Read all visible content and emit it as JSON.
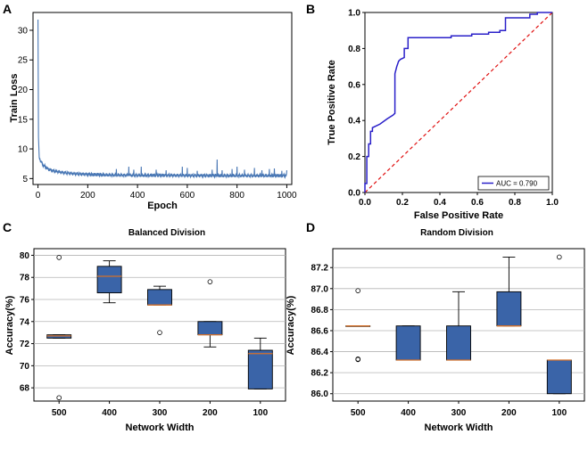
{
  "panels": [
    "A",
    "B",
    "C",
    "D"
  ],
  "chart_data": [
    {
      "id": "A",
      "type": "line",
      "title": "",
      "xlabel": "Epoch",
      "ylabel": "Train Loss",
      "xlim": [
        -20,
        1020
      ],
      "ylim": [
        4,
        33
      ],
      "xticks": [
        0,
        200,
        400,
        600,
        800,
        1000
      ],
      "yticks": [
        5,
        10,
        15,
        20,
        25,
        30
      ],
      "color": "#4a78b5",
      "base_points": [
        [
          0,
          31.8
        ],
        [
          2,
          12
        ],
        [
          5,
          8.5
        ],
        [
          10,
          8.0
        ],
        [
          20,
          7.3
        ],
        [
          40,
          6.6
        ],
        [
          60,
          6.3
        ],
        [
          100,
          6.0
        ],
        [
          150,
          5.8
        ],
        [
          200,
          5.7
        ],
        [
          300,
          5.6
        ],
        [
          400,
          5.55
        ],
        [
          500,
          5.55
        ],
        [
          600,
          5.5
        ],
        [
          700,
          5.5
        ],
        [
          800,
          5.5
        ],
        [
          900,
          5.5
        ],
        [
          1000,
          5.5
        ]
      ],
      "spikes": [
        [
          315,
          6.6
        ],
        [
          365,
          7.0
        ],
        [
          385,
          6.5
        ],
        [
          415,
          7.0
        ],
        [
          475,
          6.5
        ],
        [
          515,
          6.4
        ],
        [
          580,
          7.0
        ],
        [
          600,
          6.8
        ],
        [
          640,
          6.3
        ],
        [
          700,
          6.5
        ],
        [
          720,
          8.2
        ],
        [
          740,
          6.4
        ],
        [
          780,
          6.6
        ],
        [
          800,
          7.0
        ],
        [
          830,
          6.5
        ],
        [
          870,
          6.8
        ],
        [
          900,
          6.4
        ],
        [
          930,
          6.6
        ],
        [
          950,
          6.7
        ],
        [
          980,
          6.3
        ],
        [
          1000,
          6.4
        ]
      ]
    },
    {
      "id": "B",
      "type": "line",
      "title": "",
      "xlabel": "False Positive Rate",
      "ylabel": "True Positive Rate",
      "xlim": [
        0,
        1
      ],
      "ylim": [
        0,
        1
      ],
      "xticks": [
        0.0,
        0.2,
        0.4,
        0.6,
        0.8,
        1.0
      ],
      "xtick_labels": [
        "0.0",
        "0.2",
        "0.4",
        "0.6",
        "0.8",
        "1.0"
      ],
      "yticks": [
        0.0,
        0.2,
        0.4,
        0.6,
        0.8,
        1.0
      ],
      "ytick_labels": [
        "0.0",
        "0.2",
        "0.4",
        "0.6",
        "0.8",
        "1.0"
      ],
      "series": [
        {
          "name": "AUC = 0.790",
          "color": "#2a20c9",
          "points": [
            [
              0,
              0
            ],
            [
              0,
              0.05
            ],
            [
              0.01,
              0.05
            ],
            [
              0.01,
              0.2
            ],
            [
              0.02,
              0.2
            ],
            [
              0.02,
              0.27
            ],
            [
              0.03,
              0.27
            ],
            [
              0.03,
              0.34
            ],
            [
              0.04,
              0.34
            ],
            [
              0.04,
              0.36
            ],
            [
              0.08,
              0.38
            ],
            [
              0.12,
              0.41
            ],
            [
              0.15,
              0.43
            ],
            [
              0.16,
              0.44
            ],
            [
              0.16,
              0.66
            ],
            [
              0.17,
              0.7
            ],
            [
              0.18,
              0.73
            ],
            [
              0.19,
              0.74
            ],
            [
              0.21,
              0.75
            ],
            [
              0.21,
              0.8
            ],
            [
              0.23,
              0.8
            ],
            [
              0.23,
              0.86
            ],
            [
              0.46,
              0.86
            ],
            [
              0.46,
              0.87
            ],
            [
              0.57,
              0.87
            ],
            [
              0.57,
              0.88
            ],
            [
              0.66,
              0.88
            ],
            [
              0.66,
              0.89
            ],
            [
              0.72,
              0.89
            ],
            [
              0.72,
              0.9
            ],
            [
              0.75,
              0.9
            ],
            [
              0.75,
              0.97
            ],
            [
              0.88,
              0.97
            ],
            [
              0.88,
              0.99
            ],
            [
              0.92,
              0.99
            ],
            [
              0.92,
              1.0
            ],
            [
              1.0,
              1.0
            ]
          ]
        },
        {
          "name": "diagonal",
          "color": "#e01010",
          "dashed": true,
          "points": [
            [
              0,
              0
            ],
            [
              1,
              1
            ]
          ]
        }
      ],
      "legend": "bottom-right"
    },
    {
      "id": "C",
      "type": "box",
      "title": "Balanced Division",
      "xlabel": "Network Width",
      "ylabel": "Accuracy(%)",
      "ylim": [
        66.8,
        80.6
      ],
      "yticks": [
        68,
        70,
        72,
        74,
        76,
        78,
        80
      ],
      "categories": [
        "500",
        "400",
        "300",
        "200",
        "100"
      ],
      "boxes": [
        {
          "q1": 72.5,
          "median": 72.7,
          "q3": 72.8,
          "whisker_low": 72.5,
          "whisker_high": 72.8,
          "outliers": [
            79.8,
            67.1
          ]
        },
        {
          "q1": 76.6,
          "median": 78.1,
          "q3": 79.0,
          "whisker_low": 75.7,
          "whisker_high": 79.5,
          "outliers": []
        },
        {
          "q1": 75.5,
          "median": 75.5,
          "q3": 76.9,
          "whisker_low": 75.5,
          "whisker_high": 77.2,
          "outliers": [
            73.0
          ]
        },
        {
          "q1": 72.8,
          "median": 72.8,
          "q3": 74.0,
          "whisker_low": 71.7,
          "whisker_high": 74.0,
          "outliers": [
            77.6
          ]
        },
        {
          "q1": 67.9,
          "median": 71.1,
          "q3": 71.4,
          "whisker_low": 67.9,
          "whisker_high": 72.5,
          "outliers": []
        }
      ],
      "box_color": "#3a64a8",
      "median_color": "#d4702a"
    },
    {
      "id": "D",
      "type": "box",
      "title": "Random Division",
      "xlabel": "Network Width",
      "ylabel": "Accuracy(%)",
      "ylim": [
        85.93,
        87.38
      ],
      "yticks": [
        86.0,
        86.2,
        86.4,
        86.6,
        86.8,
        87.0,
        87.2
      ],
      "ytick_labels": [
        "86.0",
        "86.2",
        "86.4",
        "86.6",
        "86.8",
        "87.0",
        "87.2"
      ],
      "categories": [
        "500",
        "400",
        "300",
        "200",
        "100"
      ],
      "boxes": [
        {
          "q1": 86.645,
          "median": 86.645,
          "q3": 86.645,
          "whisker_low": 86.645,
          "whisker_high": 86.645,
          "outliers": [
            86.98,
            86.325,
            86.33
          ]
        },
        {
          "q1": 86.32,
          "median": 86.32,
          "q3": 86.645,
          "whisker_low": 86.32,
          "whisker_high": 86.645,
          "outliers": []
        },
        {
          "q1": 86.32,
          "median": 86.32,
          "q3": 86.645,
          "whisker_low": 86.32,
          "whisker_high": 86.97,
          "outliers": []
        },
        {
          "q1": 86.645,
          "median": 86.645,
          "q3": 86.97,
          "whisker_low": 86.645,
          "whisker_high": 87.3,
          "outliers": []
        },
        {
          "q1": 86.0,
          "median": 86.32,
          "q3": 86.32,
          "whisker_low": 86.0,
          "whisker_high": 86.32,
          "outliers": [
            87.3
          ]
        }
      ],
      "box_color": "#3a64a8",
      "median_color": "#d4702a"
    }
  ]
}
